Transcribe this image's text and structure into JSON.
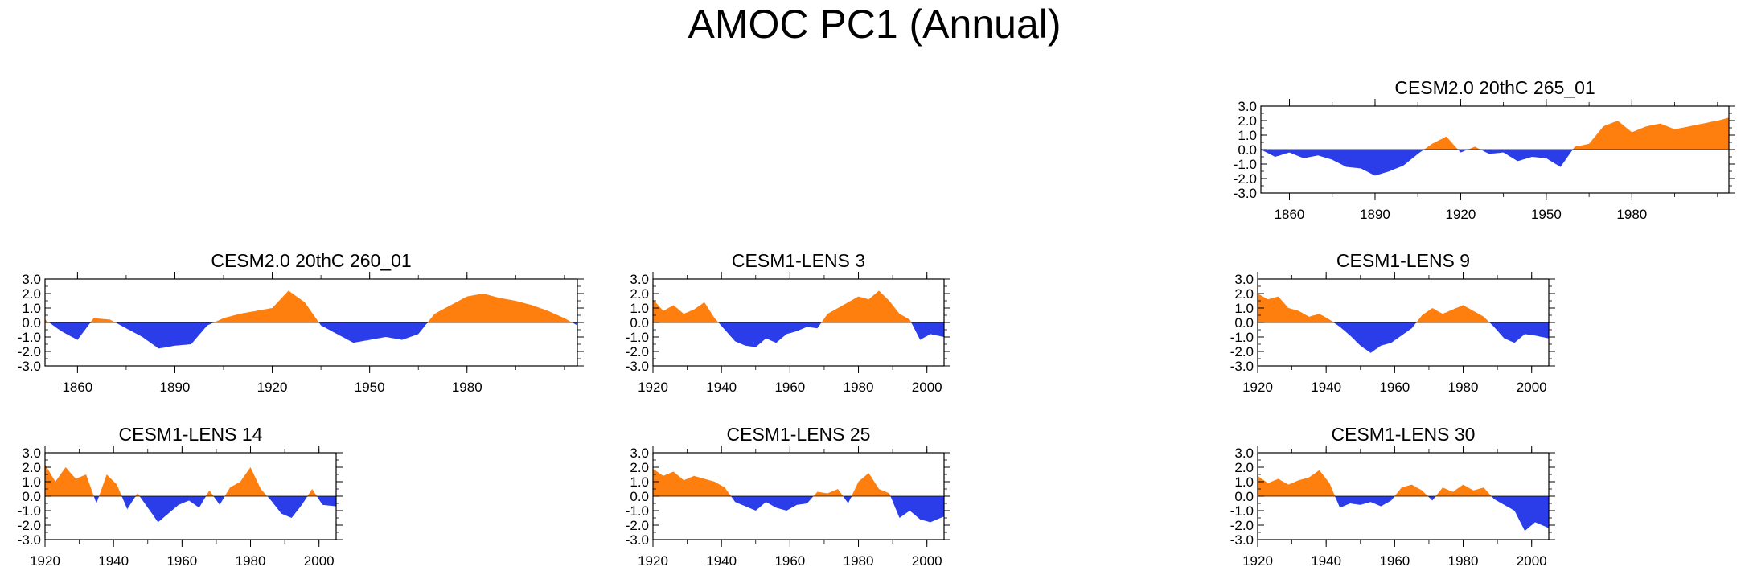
{
  "title": "AMOC PC1 (Annual)",
  "colors": {
    "positive": "#ff7f0e",
    "negative": "#2a3de8",
    "axis": "#000000"
  },
  "chart_data": [
    {
      "type": "area",
      "id": "p_265",
      "title": "CESM2.0 20thC 265_01",
      "x_range": [
        1850,
        2014
      ],
      "ylim": [
        -3.0,
        3.0
      ],
      "yticks": [
        "3.0",
        "2.0",
        "1.0",
        "0.0",
        "-1.0",
        "-2.0",
        "-3.0"
      ],
      "xticks": [
        1860,
        1890,
        1920,
        1950,
        1980
      ],
      "x": [
        1850,
        1855,
        1860,
        1865,
        1870,
        1875,
        1880,
        1885,
        1890,
        1895,
        1900,
        1905,
        1910,
        1915,
        1920,
        1925,
        1930,
        1935,
        1940,
        1945,
        1950,
        1955,
        1960,
        1965,
        1970,
        1975,
        1980,
        1985,
        1990,
        1995,
        2000,
        2005,
        2010,
        2014
      ],
      "values": [
        0,
        -0.5,
        -0.2,
        -0.6,
        -0.4,
        -0.7,
        -1.2,
        -1.3,
        -1.8,
        -1.5,
        -1.1,
        -0.3,
        0.4,
        0.9,
        -0.2,
        0.2,
        -0.3,
        -0.2,
        -0.8,
        -0.5,
        -0.6,
        -1.2,
        0.2,
        0.4,
        1.6,
        2.0,
        1.2,
        1.6,
        1.8,
        1.4,
        1.6,
        1.8,
        2.0,
        2.2
      ]
    },
    {
      "type": "area",
      "id": "p_260",
      "title": "CESM2.0 20thC 260_01",
      "x_range": [
        1850,
        2014
      ],
      "ylim": [
        -3.0,
        3.0
      ],
      "yticks": [
        "3.0",
        "2.0",
        "1.0",
        "0.0",
        "-1.0",
        "-2.0",
        "-3.0"
      ],
      "xticks": [
        1860,
        1890,
        1920,
        1950,
        1980
      ],
      "x": [
        1850,
        1855,
        1860,
        1865,
        1870,
        1875,
        1880,
        1885,
        1890,
        1895,
        1900,
        1905,
        1910,
        1915,
        1920,
        1925,
        1930,
        1935,
        1940,
        1945,
        1950,
        1955,
        1960,
        1965,
        1970,
        1975,
        1980,
        1985,
        1990,
        1995,
        2000,
        2005,
        2010,
        2014
      ],
      "values": [
        0.2,
        -0.6,
        -1.2,
        0.3,
        0.2,
        -0.4,
        -1.0,
        -1.8,
        -1.6,
        -1.5,
        -0.2,
        0.3,
        0.6,
        0.8,
        1.0,
        2.2,
        1.4,
        -0.2,
        -0.8,
        -1.4,
        -1.2,
        -1.0,
        -1.2,
        -0.8,
        0.6,
        1.2,
        1.8,
        2.0,
        1.7,
        1.5,
        1.2,
        0.8,
        0.3,
        -0.2
      ]
    },
    {
      "type": "area",
      "id": "p_l3",
      "title": "CESM1-LENS 3",
      "x_range": [
        1920,
        2005
      ],
      "ylim": [
        -3.0,
        3.0
      ],
      "yticks": [
        "3.0",
        "2.0",
        "1.0",
        "0.0",
        "-1.0",
        "-2.0",
        "-3.0"
      ],
      "xticks": [
        1920,
        1940,
        1960,
        1980,
        2000
      ],
      "x": [
        1920,
        1923,
        1926,
        1929,
        1932,
        1935,
        1938,
        1941,
        1944,
        1947,
        1950,
        1953,
        1956,
        1959,
        1962,
        1965,
        1968,
        1971,
        1974,
        1977,
        1980,
        1983,
        1986,
        1989,
        1992,
        1995,
        1998,
        2001,
        2005
      ],
      "values": [
        1.6,
        0.8,
        1.2,
        0.6,
        0.9,
        1.4,
        0.3,
        -0.5,
        -1.3,
        -1.6,
        -1.7,
        -1.1,
        -1.4,
        -0.8,
        -0.6,
        -0.3,
        -0.4,
        0.6,
        1.0,
        1.4,
        1.8,
        1.6,
        2.2,
        1.5,
        0.6,
        0.2,
        -1.2,
        -0.8,
        -1.0
      ]
    },
    {
      "type": "area",
      "id": "p_l9",
      "title": "CESM1-LENS 9",
      "x_range": [
        1920,
        2005
      ],
      "ylim": [
        -3.0,
        3.0
      ],
      "yticks": [
        "3.0",
        "2.0",
        "1.0",
        "0.0",
        "-1.0",
        "-2.0",
        "-3.0"
      ],
      "xticks": [
        1920,
        1940,
        1960,
        1980,
        2000
      ],
      "x": [
        1920,
        1923,
        1926,
        1929,
        1932,
        1935,
        1938,
        1941,
        1944,
        1947,
        1950,
        1953,
        1956,
        1959,
        1962,
        1965,
        1968,
        1971,
        1974,
        1977,
        1980,
        1983,
        1986,
        1989,
        1992,
        1995,
        1998,
        2001,
        2005
      ],
      "values": [
        2.0,
        1.6,
        1.8,
        1.0,
        0.8,
        0.4,
        0.6,
        0.2,
        -0.3,
        -0.9,
        -1.6,
        -2.1,
        -1.6,
        -1.4,
        -0.9,
        -0.4,
        0.5,
        1.0,
        0.6,
        0.9,
        1.2,
        0.8,
        0.4,
        -0.3,
        -1.1,
        -1.4,
        -0.8,
        -0.9,
        -1.1
      ]
    },
    {
      "type": "area",
      "id": "p_l14",
      "title": "CESM1-LENS 14",
      "x_range": [
        1920,
        2005
      ],
      "ylim": [
        -3.0,
        3.0
      ],
      "yticks": [
        "3.0",
        "2.0",
        "1.0",
        "0.0",
        "-1.0",
        "-2.0",
        "-3.0"
      ],
      "xticks": [
        1920,
        1940,
        1960,
        1980,
        2000
      ],
      "x": [
        1920,
        1923,
        1926,
        1929,
        1932,
        1935,
        1938,
        1941,
        1944,
        1947,
        1950,
        1953,
        1956,
        1959,
        1962,
        1965,
        1968,
        1971,
        1974,
        1977,
        1980,
        1983,
        1986,
        1989,
        1992,
        1995,
        1998,
        2001,
        2005
      ],
      "values": [
        2.2,
        1.0,
        2.0,
        1.2,
        1.5,
        -0.5,
        1.5,
        0.8,
        -0.9,
        0.2,
        -0.8,
        -1.8,
        -1.2,
        -0.6,
        -0.3,
        -0.8,
        0.4,
        -0.6,
        0.6,
        1.0,
        2.0,
        0.5,
        -0.3,
        -1.2,
        -1.5,
        -0.6,
        0.5,
        -0.6,
        -0.7
      ]
    },
    {
      "type": "area",
      "id": "p_l25",
      "title": "CESM1-LENS 25",
      "x_range": [
        1920,
        2005
      ],
      "ylim": [
        -3.0,
        3.0
      ],
      "yticks": [
        "3.0",
        "2.0",
        "1.0",
        "0.0",
        "-1.0",
        "-2.0",
        "-3.0"
      ],
      "xticks": [
        1920,
        1940,
        1960,
        1980,
        2000
      ],
      "x": [
        1920,
        1923,
        1926,
        1929,
        1932,
        1935,
        1938,
        1941,
        1944,
        1947,
        1950,
        1953,
        1956,
        1959,
        1962,
        1965,
        1968,
        1971,
        1974,
        1977,
        1980,
        1983,
        1986,
        1989,
        1992,
        1995,
        1998,
        2001,
        2005
      ],
      "values": [
        1.9,
        1.4,
        1.7,
        1.1,
        1.4,
        1.2,
        1.0,
        0.6,
        -0.4,
        -0.7,
        -1.0,
        -0.4,
        -0.8,
        -1.0,
        -0.6,
        -0.5,
        0.3,
        0.2,
        0.5,
        -0.5,
        1.0,
        1.6,
        0.5,
        0.2,
        -1.5,
        -1.0,
        -1.6,
        -1.8,
        -1.4
      ]
    },
    {
      "type": "area",
      "id": "p_l30",
      "title": "CESM1-LENS 30",
      "x_range": [
        1920,
        2005
      ],
      "ylim": [
        -3.0,
        3.0
      ],
      "yticks": [
        "3.0",
        "2.0",
        "1.0",
        "0.0",
        "-1.0",
        "-2.0",
        "-3.0"
      ],
      "xticks": [
        1920,
        1940,
        1960,
        1980,
        2000
      ],
      "x": [
        1920,
        1923,
        1926,
        1929,
        1932,
        1935,
        1938,
        1941,
        1944,
        1947,
        1950,
        1953,
        1956,
        1959,
        1962,
        1965,
        1968,
        1971,
        1974,
        1977,
        1980,
        1983,
        1986,
        1989,
        1992,
        1995,
        1998,
        2001,
        2005
      ],
      "values": [
        1.4,
        0.9,
        1.2,
        0.8,
        1.1,
        1.3,
        1.8,
        0.9,
        -0.8,
        -0.5,
        -0.6,
        -0.4,
        -0.7,
        -0.3,
        0.6,
        0.8,
        0.4,
        -0.3,
        0.6,
        0.3,
        0.8,
        0.4,
        0.6,
        -0.2,
        -0.6,
        -1.0,
        -2.4,
        -1.8,
        -2.2
      ]
    }
  ]
}
